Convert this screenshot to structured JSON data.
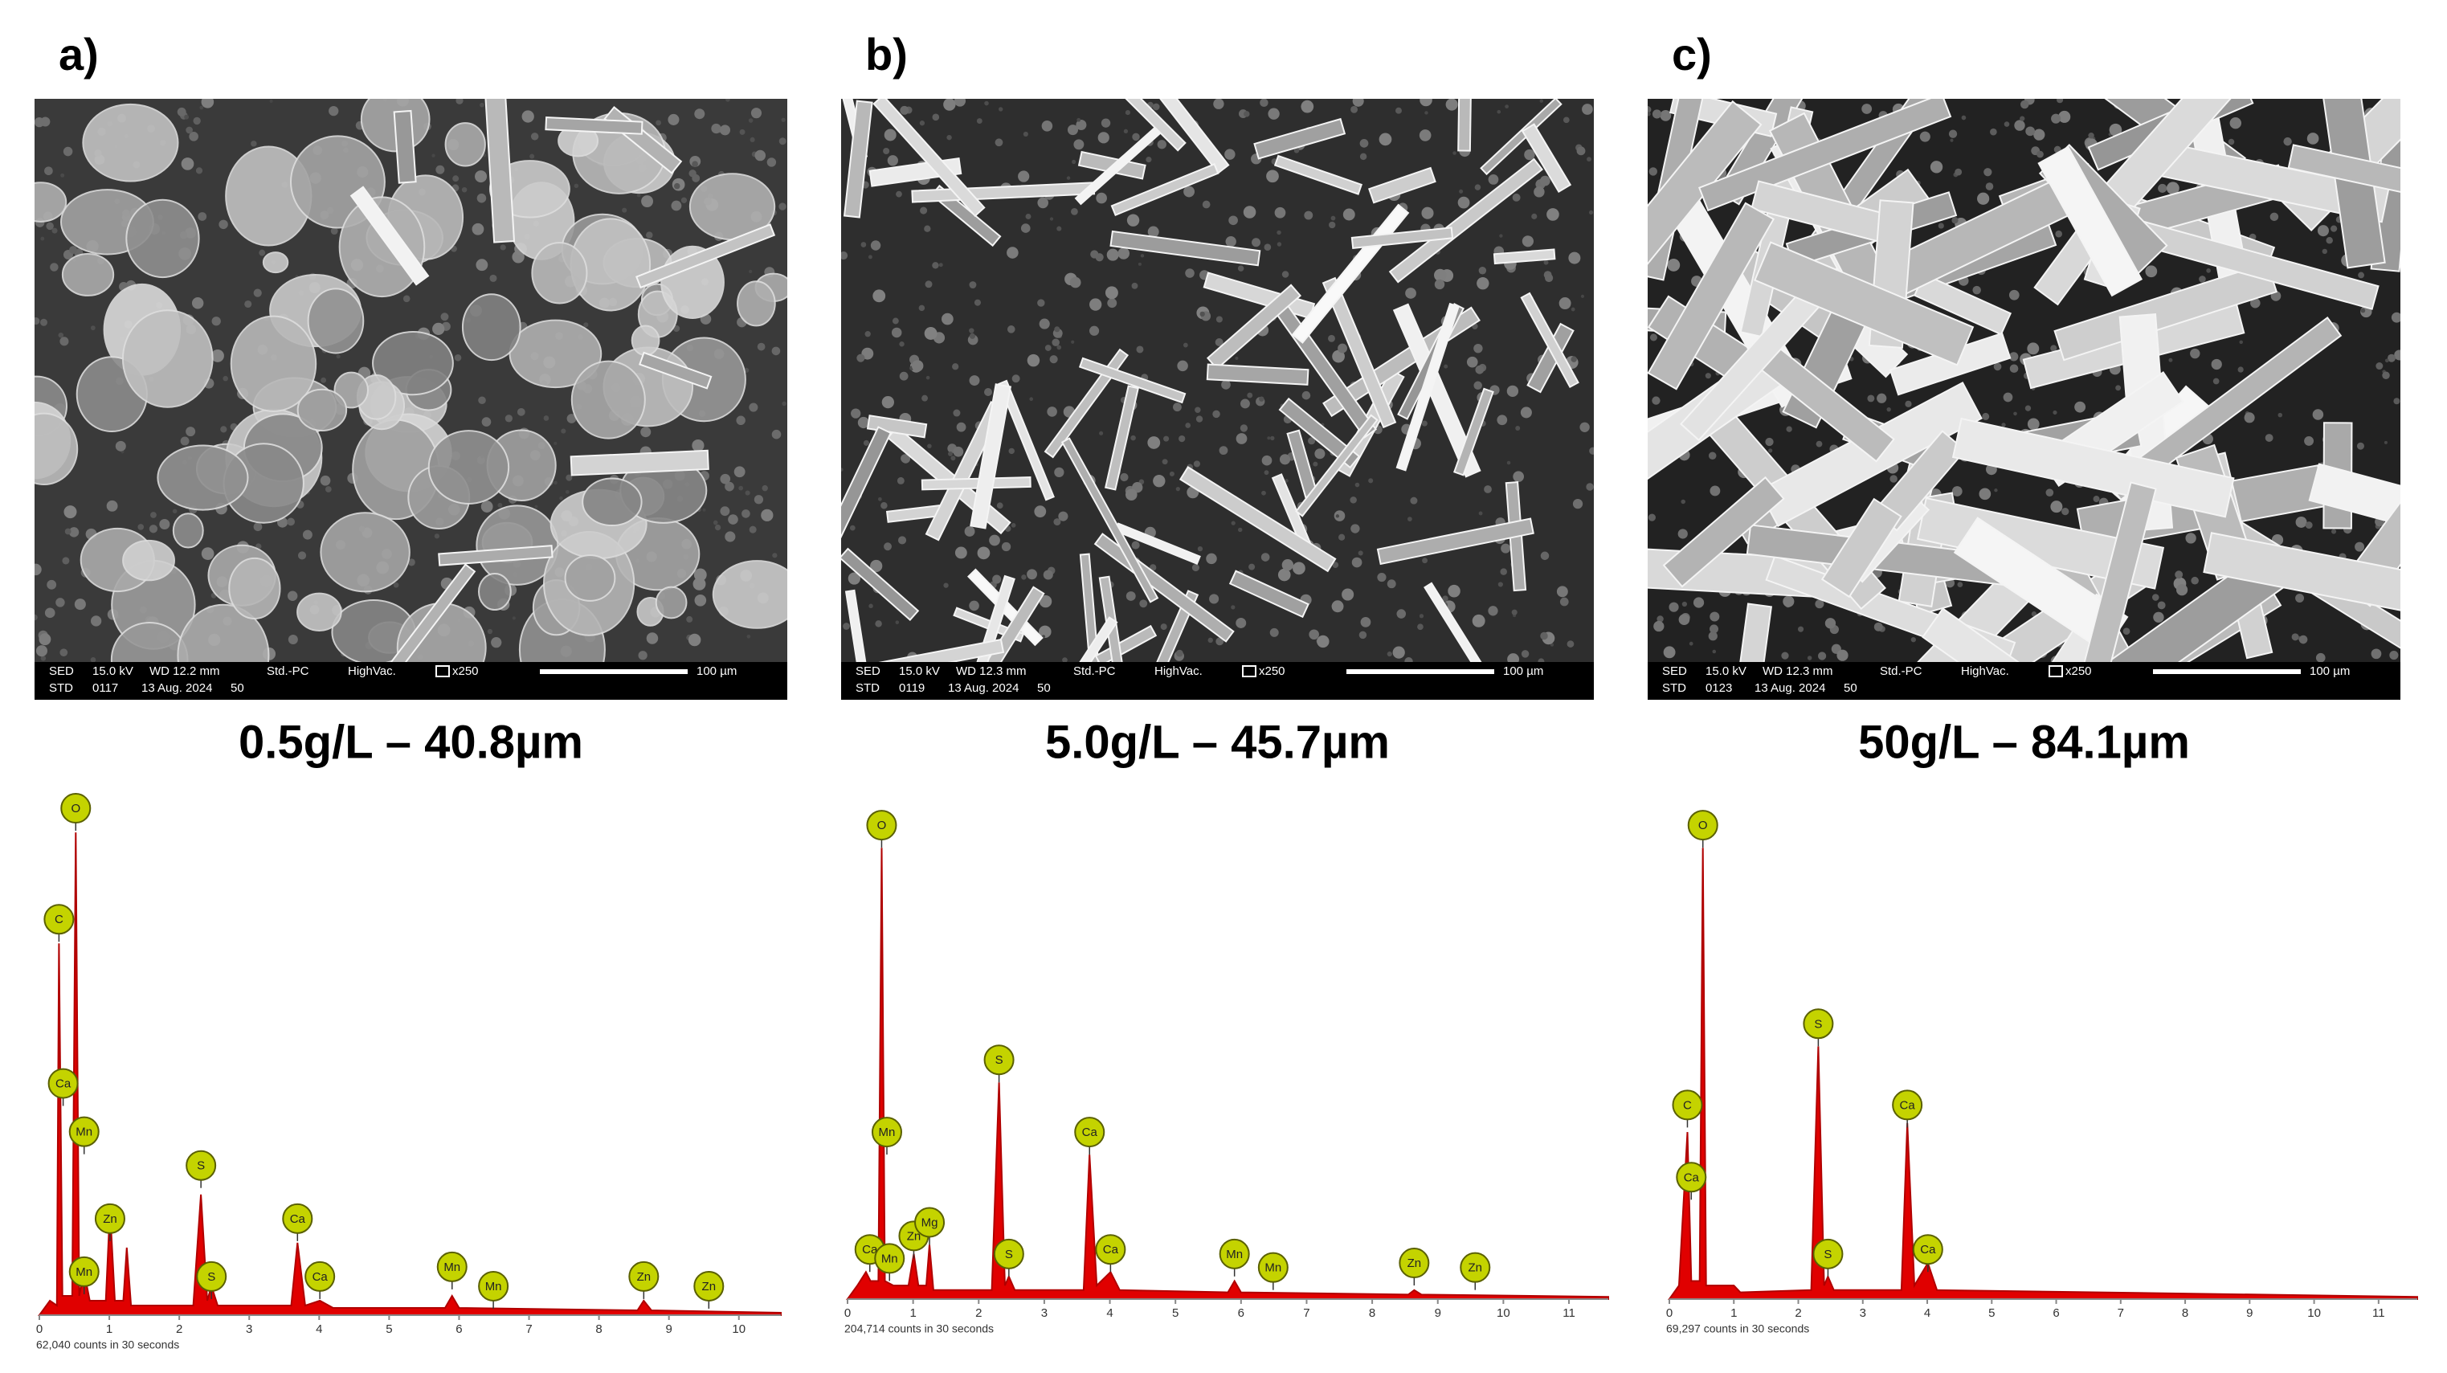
{
  "panels": [
    {
      "label": "a)",
      "caption": "0.5g/L – 40.8µm",
      "info_top": [
        "SED",
        "15.0 kV",
        "WD 12.2 mm",
        "Std.-PC",
        "HighVac.",
        "x250"
      ],
      "info_bottom": [
        "STD",
        "0117",
        "13 Aug. 2024",
        "50"
      ],
      "scale_bar": "100 µm"
    },
    {
      "label": "b)",
      "caption": "5.0g/L – 45.7µm",
      "info_top": [
        "SED",
        "15.0 kV",
        "WD 12.3 mm",
        "Std.-PC",
        "HighVac.",
        "x250"
      ],
      "info_bottom": [
        "STD",
        "0119",
        "13 Aug. 2024",
        "50"
      ],
      "scale_bar": "100 µm"
    },
    {
      "label": "c)",
      "caption": "50g/L – 84.1µm",
      "info_top": [
        "SED",
        "15.0 kV",
        "WD 12.3 mm",
        "Std.-PC",
        "HighVac.",
        "x250"
      ],
      "info_bottom": [
        "STD",
        "0123",
        "13 Aug. 2024",
        "50"
      ],
      "scale_bar": "100 µm"
    }
  ],
  "chart_data": [
    {
      "type": "area",
      "color": "#e00000",
      "xlim": [
        0,
        10.6
      ],
      "xticks": [
        0,
        1,
        2,
        3,
        4,
        5,
        6,
        7,
        8,
        9,
        10
      ],
      "ylim": [
        0,
        110
      ],
      "x": [
        0,
        0.15,
        0.25,
        0.28,
        0.33,
        0.47,
        0.52,
        0.57,
        0.64,
        0.72,
        0.95,
        1.01,
        1.08,
        1.2,
        1.25,
        1.31,
        2.2,
        2.31,
        2.4,
        2.46,
        2.55,
        3.6,
        3.69,
        3.8,
        4.01,
        4.2,
        5.8,
        5.9,
        6.0,
        8.55,
        8.64,
        8.75,
        10.6
      ],
      "values": [
        0,
        3,
        2,
        77,
        4,
        4,
        100,
        4,
        9,
        3,
        3,
        22,
        3,
        3,
        14,
        2,
        2,
        25,
        3,
        6,
        2,
        2,
        15,
        2,
        3,
        1.5,
        1.5,
        4,
        1.5,
        1,
        3,
        1,
        0.5
      ],
      "peak_labels": [
        {
          "text": "O",
          "x": 0.52,
          "y": 105
        },
        {
          "text": "C",
          "x": 0.28,
          "y": 82
        },
        {
          "text": "Ca",
          "x": 0.34,
          "y": 48
        },
        {
          "text": "Mn",
          "x": 0.64,
          "y": 38
        },
        {
          "text": "Mn",
          "x": 0.64,
          "y": 9
        },
        {
          "text": "Zn",
          "x": 1.01,
          "y": 20
        },
        {
          "text": "S",
          "x": 2.31,
          "y": 31
        },
        {
          "text": "S",
          "x": 2.46,
          "y": 8
        },
        {
          "text": "Ca",
          "x": 3.69,
          "y": 20
        },
        {
          "text": "Ca",
          "x": 4.01,
          "y": 8
        },
        {
          "text": "Mn",
          "x": 5.9,
          "y": 10
        },
        {
          "text": "Mn",
          "x": 6.49,
          "y": 6
        },
        {
          "text": "Zn",
          "x": 8.64,
          "y": 8
        },
        {
          "text": "Zn",
          "x": 9.57,
          "y": 6
        }
      ],
      "counts_label": "62,040 counts in 30 seconds"
    },
    {
      "type": "area",
      "color": "#e00000",
      "xlim": [
        0,
        11.6
      ],
      "xticks": [
        0,
        1,
        2,
        3,
        4,
        5,
        6,
        7,
        8,
        9,
        10,
        11
      ],
      "ylim": [
        0,
        110
      ],
      "x": [
        0,
        0.15,
        0.28,
        0.35,
        0.47,
        0.52,
        0.57,
        0.7,
        0.93,
        1.01,
        1.08,
        1.2,
        1.25,
        1.31,
        2.2,
        2.31,
        2.4,
        2.46,
        2.55,
        3.6,
        3.69,
        3.8,
        4.01,
        4.15,
        5.8,
        5.9,
        6.0,
        8.55,
        8.64,
        8.75,
        11.6
      ],
      "values": [
        0,
        3,
        6,
        4,
        4,
        100,
        4,
        3,
        3,
        10,
        3,
        3,
        12,
        2,
        2,
        48,
        3,
        5,
        2,
        2,
        32,
        3,
        6,
        2,
        1.5,
        4,
        1.5,
        1,
        2,
        1,
        0.5
      ],
      "peak_labels": [
        {
          "text": "O",
          "x": 0.52,
          "y": 105
        },
        {
          "text": "Mn",
          "x": 0.6,
          "y": 37
        },
        {
          "text": "Ca",
          "x": 0.34,
          "y": 11
        },
        {
          "text": "Mn",
          "x": 0.64,
          "y": 9
        },
        {
          "text": "Zn",
          "x": 1.01,
          "y": 14
        },
        {
          "text": "Mg",
          "x": 1.25,
          "y": 17
        },
        {
          "text": "S",
          "x": 2.31,
          "y": 53
        },
        {
          "text": "S",
          "x": 2.46,
          "y": 10
        },
        {
          "text": "Ca",
          "x": 3.69,
          "y": 37
        },
        {
          "text": "Ca",
          "x": 4.01,
          "y": 11
        },
        {
          "text": "Mn",
          "x": 5.9,
          "y": 10
        },
        {
          "text": "Mn",
          "x": 6.49,
          "y": 7
        },
        {
          "text": "Zn",
          "x": 8.64,
          "y": 8
        },
        {
          "text": "Zn",
          "x": 9.57,
          "y": 7
        }
      ],
      "counts_label": "204,714 counts in 30 seconds"
    },
    {
      "type": "area",
      "color": "#e00000",
      "xlim": [
        0,
        11.6
      ],
      "xticks": [
        0,
        1,
        2,
        3,
        4,
        5,
        6,
        7,
        8,
        9,
        10,
        11
      ],
      "ylim": [
        0,
        110
      ],
      "x": [
        0,
        0.15,
        0.28,
        0.34,
        0.47,
        0.52,
        0.57,
        1.0,
        1.1,
        2.2,
        2.31,
        2.4,
        2.46,
        2.55,
        3.6,
        3.69,
        3.8,
        4.01,
        4.15,
        11.6
      ],
      "values": [
        0,
        3,
        37,
        4,
        4,
        100,
        3,
        3,
        1.5,
        2,
        56,
        3,
        5,
        2,
        2,
        39,
        3,
        8,
        2,
        0.5
      ],
      "peak_labels": [
        {
          "text": "O",
          "x": 0.52,
          "y": 105
        },
        {
          "text": "C",
          "x": 0.28,
          "y": 43
        },
        {
          "text": "Ca",
          "x": 0.34,
          "y": 27
        },
        {
          "text": "S",
          "x": 2.31,
          "y": 61
        },
        {
          "text": "S",
          "x": 2.46,
          "y": 10
        },
        {
          "text": "Ca",
          "x": 3.69,
          "y": 43
        },
        {
          "text": "Ca",
          "x": 4.01,
          "y": 11
        }
      ],
      "counts_label": "69,297 counts in 30 seconds"
    }
  ]
}
